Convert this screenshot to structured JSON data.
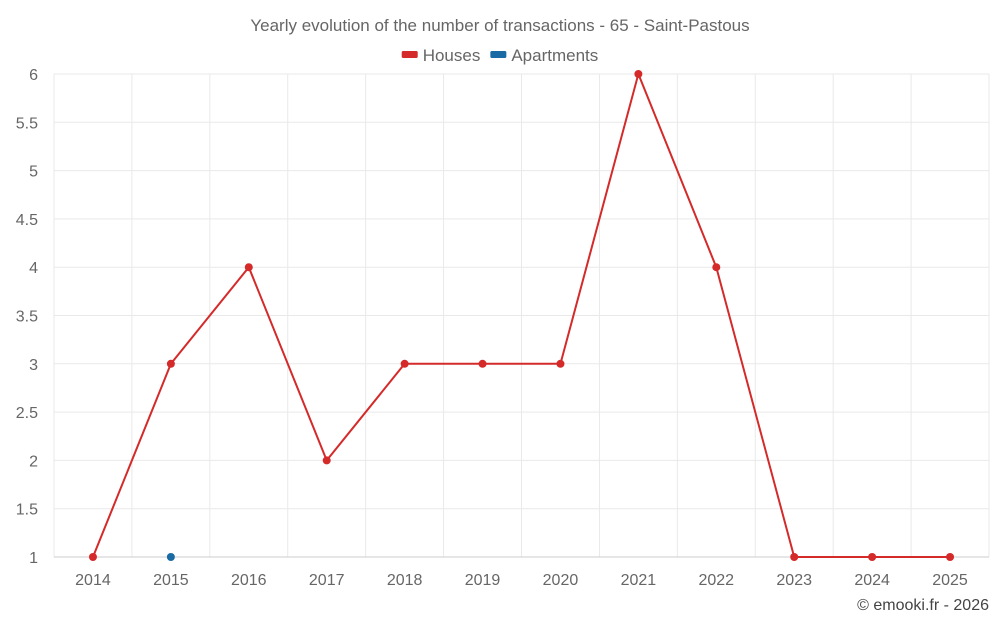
{
  "chart_data": {
    "type": "line",
    "title": "Yearly evolution of the number of transactions - 65 - Saint-Pastous",
    "categories": [
      "2014",
      "2015",
      "2016",
      "2017",
      "2018",
      "2019",
      "2020",
      "2021",
      "2022",
      "2023",
      "2024",
      "2025"
    ],
    "ylim": [
      1,
      6
    ],
    "yticks": [
      "1",
      "1.5",
      "2",
      "2.5",
      "3",
      "3.5",
      "4",
      "4.5",
      "5",
      "5.5",
      "6"
    ],
    "grid": true,
    "legend_position": "top-center",
    "series": [
      {
        "name": "Houses",
        "color": "#d42a2a",
        "values": [
          1,
          3,
          4,
          2,
          3,
          3,
          3,
          6,
          4,
          1,
          1,
          1
        ]
      },
      {
        "name": "Apartments",
        "color": "#1a6aa3",
        "values": [
          null,
          1,
          null,
          null,
          null,
          null,
          null,
          null,
          null,
          null,
          null,
          null
        ]
      }
    ]
  },
  "credit": "© emooki.fr - 2026"
}
